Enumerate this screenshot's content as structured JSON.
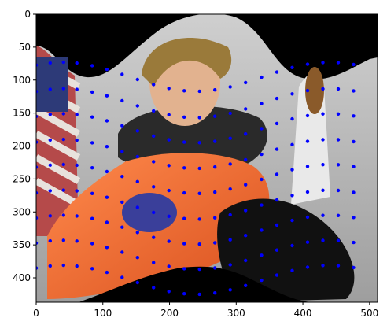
{
  "chart_data": {
    "type": "scatter",
    "title": "",
    "xlabel": "",
    "ylabel": "",
    "xlim": [
      0,
      512
    ],
    "ylim": [
      437,
      0
    ],
    "x_ticks": [
      0,
      100,
      200,
      300,
      400,
      500
    ],
    "y_ticks": [
      0,
      50,
      100,
      150,
      200,
      250,
      300,
      350,
      400
    ],
    "x_tick_labels": [
      "0",
      "100",
      "200",
      "300",
      "400",
      "500"
    ],
    "y_tick_labels": [
      "0",
      "50",
      "100",
      "150",
      "200",
      "250",
      "300",
      "350",
      "400"
    ],
    "grid": false,
    "legend": "none",
    "background_image": "warped-astronaut-photo",
    "point_color": "#0000ff",
    "series": [
      {
        "grid_shape": [
          12,
          16
        ],
        "rows": [
          {
            "y0": 95,
            "xs": [
              0,
              21,
              41,
              61,
              84,
              106,
              129,
              152,
              176,
              199,
              222,
              245,
              268,
              291,
              314,
              338,
              361,
              384,
              407,
              430,
              453,
              476
            ]
          },
          {
            "y0": 135,
            "xs": [
              0,
              21,
              41,
              61,
              84,
              106,
              129,
              152,
              176,
              199,
              222,
              245,
              268,
              291,
              314,
              338,
              361,
              384,
              407,
              430,
              453,
              476
            ]
          },
          {
            "y0": 173,
            "xs": [
              0,
              21,
              41,
              61,
              84,
              106,
              129,
              152,
              176,
              199,
              222,
              245,
              268,
              291,
              314,
              338,
              361,
              384,
              407,
              430,
              453,
              476
            ]
          },
          {
            "y0": 212,
            "xs": [
              0,
              21,
              41,
              61,
              84,
              106,
              129,
              152,
              176,
              199,
              222,
              245,
              268,
              291,
              314,
              338,
              361,
              384,
              407,
              430,
              453,
              476
            ]
          },
          {
            "y0": 250,
            "xs": [
              0,
              21,
              41,
              61,
              84,
              106,
              129,
              152,
              176,
              199,
              222,
              245,
              268,
              291,
              314,
              338,
              361,
              384,
              407,
              430,
              453,
              476
            ]
          },
          {
            "y0": 289,
            "xs": [
              0,
              21,
              41,
              61,
              84,
              106,
              129,
              152,
              176,
              199,
              222,
              245,
              268,
              291,
              314,
              338,
              361,
              384,
              407,
              430,
              453,
              476
            ]
          },
          {
            "y0": 327,
            "xs": [
              0,
              21,
              41,
              61,
              84,
              106,
              129,
              152,
              176,
              199,
              222,
              245,
              268,
              291,
              314,
              338,
              361,
              384,
              407,
              430,
              453,
              476
            ]
          },
          {
            "y0": 365,
            "xs": [
              0,
              21,
              41,
              61,
              84,
              106,
              129,
              152,
              176,
              199,
              222,
              245,
              268,
              291,
              314,
              338,
              361,
              384,
              407,
              430,
              453,
              476
            ]
          },
          {
            "y0": 403,
            "xs": [
              0,
              21,
              41,
              61,
              84,
              106,
              129,
              152,
              176,
              199,
              222,
              245,
              268,
              291,
              314,
              338,
              361,
              384,
              407,
              430,
              453,
              476
            ]
          }
        ],
        "wave_amplitude": 22,
        "wave_period": 400
      }
    ]
  }
}
